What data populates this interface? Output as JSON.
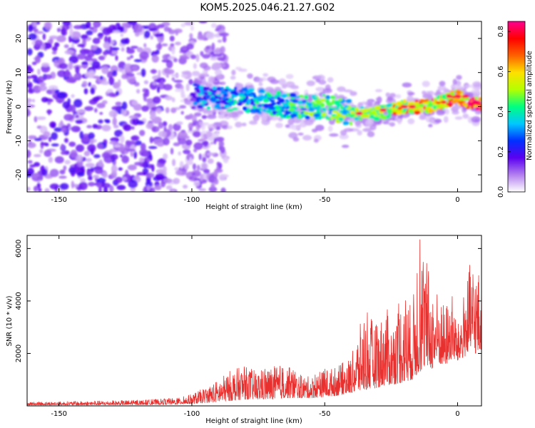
{
  "title": "KOM5.2025.046.21.27.G02",
  "chart_data": [
    {
      "type": "heatmap",
      "xlabel": "Height of straight line (km)",
      "ylabel": "Frequency (Hz)",
      "xlim": [
        -162,
        9
      ],
      "ylim": [
        -25,
        25
      ],
      "xticks": [
        -150,
        -100,
        -50,
        0
      ],
      "yticks": [
        -20,
        -10,
        0,
        10,
        20
      ],
      "colorbar": {
        "label": "Normalized spectral amplitude",
        "range": [
          0,
          0.85
        ],
        "ticks": [
          0.0,
          0.2,
          0.4,
          0.6,
          0.8
        ],
        "colors": [
          "#ffffff",
          "#b37ff0",
          "#5a00f0",
          "#0030ff",
          "#00c8ff",
          "#00ff80",
          "#b4ff00",
          "#ffe000",
          "#ff6000",
          "#ff0000",
          "#ff0090"
        ]
      },
      "ridge": {
        "description_points": [
          [
            -97,
            3
          ],
          [
            -90,
            2
          ],
          [
            -80,
            2
          ],
          [
            -70,
            1
          ],
          [
            -60,
            0
          ],
          [
            -50,
            0
          ],
          [
            -40,
            -2
          ],
          [
            -30,
            -2
          ],
          [
            -20,
            0
          ],
          [
            -10,
            0
          ],
          [
            0,
            3
          ],
          [
            5,
            1
          ],
          [
            9,
            1
          ]
        ],
        "peak_amplitude": 0.85
      },
      "grid": false
    },
    {
      "type": "line",
      "xlabel": "Height of straight line (km)",
      "ylabel": "SNR (10 * v/v)",
      "xlim": [
        -162,
        9
      ],
      "ylim": [
        0,
        6500
      ],
      "xticks": [
        -150,
        -100,
        -50,
        0
      ],
      "yticks": [
        2000,
        4000,
        6000
      ],
      "color": "#e8312f",
      "series": [
        {
          "envelope_x": [
            -162,
            -140,
            -120,
            -105,
            -100,
            -95,
            -90,
            -85,
            -80,
            -75,
            -70,
            -65,
            -60,
            -55,
            -50,
            -45,
            -40,
            -35,
            -30,
            -27,
            -25,
            -20,
            -17,
            -15,
            -12,
            -10,
            -7,
            -5,
            -2,
            0,
            3,
            5,
            7,
            9
          ],
          "envelope_y": [
            150,
            180,
            220,
            300,
            450,
            700,
            1000,
            1400,
            1500,
            1300,
            1500,
            1600,
            1200,
            1100,
            1400,
            1500,
            1900,
            3700,
            3000,
            3900,
            3100,
            4500,
            3700,
            6500,
            5900,
            4600,
            4400,
            3800,
            4300,
            3000,
            4700,
            5600,
            5300,
            5000
          ],
          "baseline_y": [
            30,
            30,
            40,
            60,
            80,
            120,
            150,
            200,
            250,
            250,
            250,
            300,
            300,
            300,
            350,
            400,
            500,
            600,
            700,
            800,
            800,
            900,
            1000,
            1200,
            1500,
            1400,
            1600,
            1500,
            1800,
            1700,
            1900,
            2000,
            2000,
            2000
          ]
        }
      ],
      "grid": false
    }
  ]
}
